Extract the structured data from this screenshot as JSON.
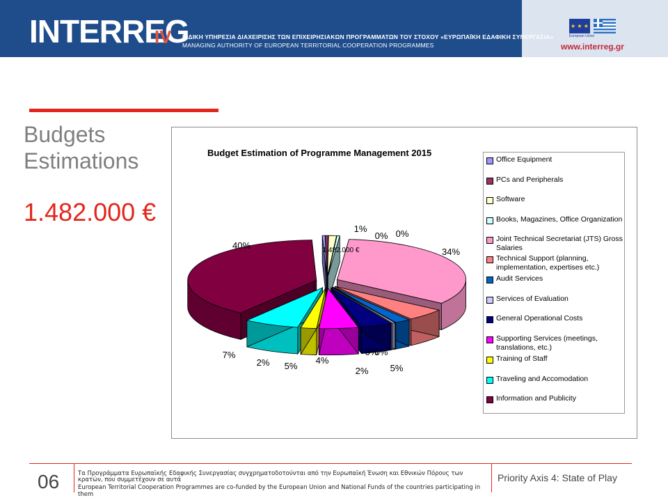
{
  "header": {
    "logo_text": "INTERREG",
    "logo_suffix": "IV",
    "authority_line_gr": "ΕΙΔΙΚΗ ΥΠΗΡΕΣΙΑ ΔΙΑΧΕΙΡΙΣΗΣ ΤΩΝ ΕΠΙΧΕΙΡΗΣΙΑΚΩΝ ΠΡΟΓΡΑΜΜΑΤΩΝ ΤΟΥ ΣΤΟΧΟΥ «ΕΥΡΩΠΑΪΚΗ ΕΔΑΦΙΚΗ ΣΥΝΕΡΓΑΣΙΑ»",
    "authority_line_en": "MANAGING AUTHORITY OF EUROPEAN TERRITORIAL COOPERATION PROGRAMMES",
    "eu_caption": "European Union",
    "website": "www.interreg.gr"
  },
  "slide": {
    "title_line1": "Budgets",
    "title_line2": "Estimations",
    "amount": "1.482.000 €"
  },
  "chart_data": {
    "type": "pie",
    "style": "3d-exploded",
    "title": "Budget Estimation of Programme Management 2015",
    "total_label": "1.482.000 €",
    "slices": [
      {
        "name": "Office Equipment",
        "percent": "0%",
        "color": "#9999ff"
      },
      {
        "name": "PCs and Peripherals",
        "percent": "0%",
        "color": "#993366"
      },
      {
        "name": "Software",
        "percent": "1%",
        "color": "#ffffcc"
      },
      {
        "name": "Books, Magazines, Office Organization",
        "percent": "0%",
        "color": "#ccffff"
      },
      {
        "name": "Joint Technical Secretariat  (JTS) Gross Salaries",
        "percent": "34%",
        "color": "#ff99cc"
      },
      {
        "name": "Technical Support  (planning, implementation, expertises etc.)",
        "percent": "5%",
        "color": "#ff8080"
      },
      {
        "name": "Audit Services",
        "percent": "2%",
        "color": "#0066cc"
      },
      {
        "name": "Services of Evaluation",
        "percent": "0%",
        "color": "#ccccff"
      },
      {
        "name": "General Operational Costs",
        "percent": "4%",
        "color": "#000080"
      },
      {
        "name": "Supporting Services  (meetings, translations,  etc.)",
        "percent": "5%",
        "color": "#ff00ff"
      },
      {
        "name": "Training of Staff",
        "percent": "2%",
        "color": "#ffff00"
      },
      {
        "name": "Traveling and Accomodation",
        "percent": "7%",
        "color": "#00ffff"
      },
      {
        "name": "Information and Publicity",
        "percent": "40%",
        "color": "#800040"
      }
    ]
  },
  "legend": {
    "items": [
      "Office Equipment",
      "PCs and Peripherals",
      "Software",
      "Books, Magazines, Office Organization",
      "Joint Technical Secretariat  (JTS) Gross Salaries",
      "Technical Support  (planning, implementation, expertises etc.)",
      "Audit Services",
      "Services of Evaluation",
      "General Operational Costs",
      "Supporting Services  (meetings, translations,  etc.)",
      "Training of Staff",
      "Traveling and Accomodation",
      "Information and Publicity"
    ]
  },
  "footer": {
    "page_number": "06",
    "text_gr": "Τα Προγράμματα Ευρωπαϊκής Εδαφικής Συνεργασίας συγχρηματοδοτούνται από την Ευρωπαϊκή Ένωση και Εθνικών Πόρους των κρατών, που συμμετέχουν σε αυτά",
    "text_en": "European Territorial Cooperation Programmes are co-funded by the European Union and National Funds of the countries participating in them",
    "section": "Priority Axis 4: State of Play"
  }
}
